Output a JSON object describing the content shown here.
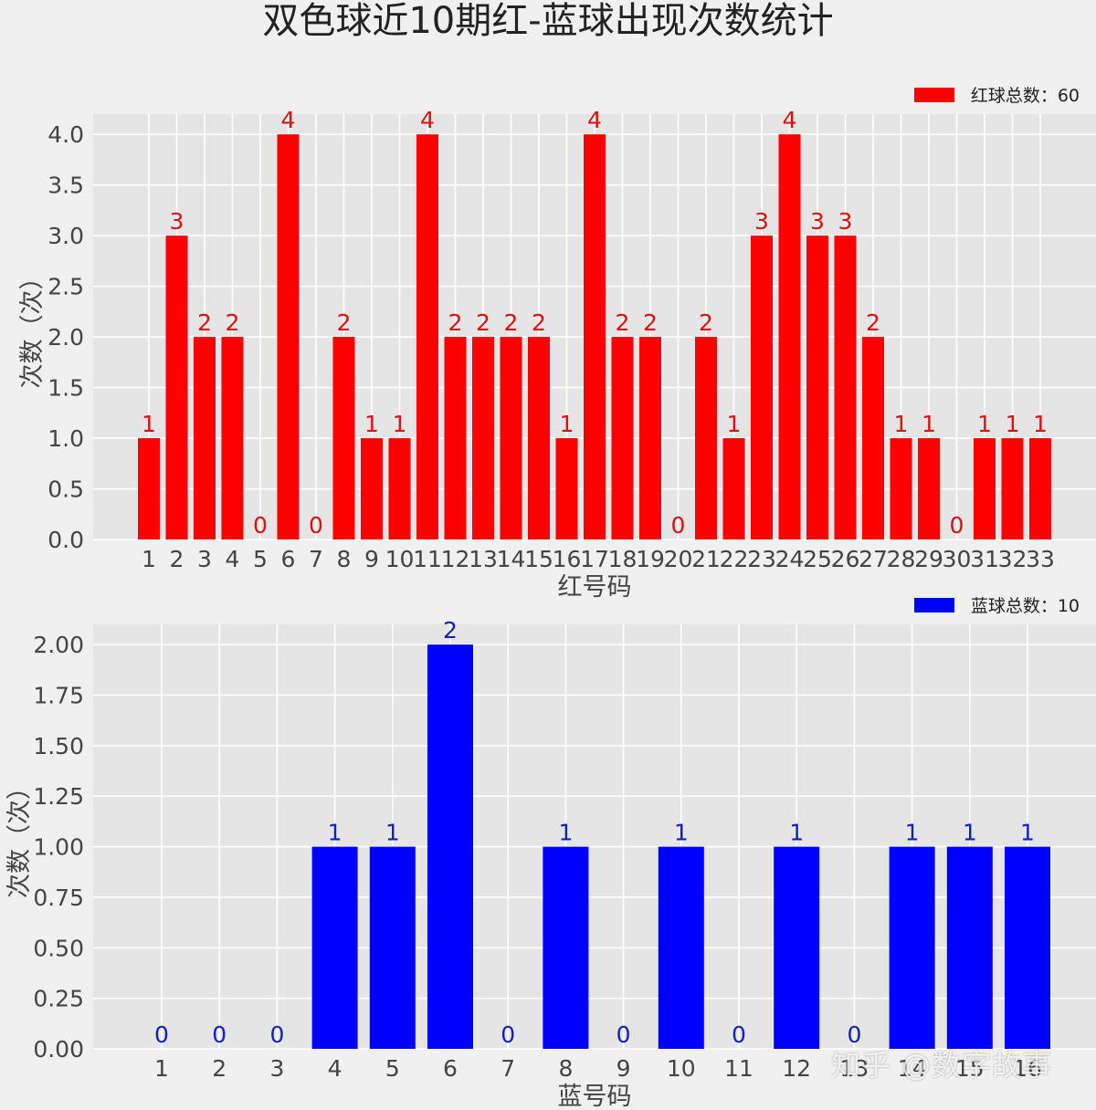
{
  "title": "双色球近10期红-蓝球出现次数统计",
  "watermark": "知乎 @数字故事",
  "chart_data": [
    {
      "type": "bar",
      "categories": [
        "1",
        "2",
        "3",
        "4",
        "5",
        "6",
        "7",
        "8",
        "9",
        "10",
        "11",
        "12",
        "13",
        "14",
        "15",
        "16",
        "17",
        "18",
        "19",
        "20",
        "21",
        "22",
        "23",
        "24",
        "25",
        "26",
        "27",
        "28",
        "29",
        "30",
        "31",
        "32",
        "33"
      ],
      "series": [
        {
          "name": "红球总数：60",
          "values": [
            1,
            3,
            2,
            2,
            0,
            4,
            0,
            2,
            1,
            1,
            4,
            2,
            2,
            2,
            2,
            1,
            4,
            2,
            2,
            0,
            2,
            1,
            3,
            4,
            3,
            3,
            2,
            1,
            1,
            0,
            1,
            1,
            1
          ]
        }
      ],
      "xlabel": "红号码",
      "ylabel": "次数（次）",
      "ylim": [
        0,
        4.2
      ],
      "yticks": [
        "0.0",
        "0.5",
        "1.0",
        "1.5",
        "2.0",
        "2.5",
        "3.0",
        "3.5",
        "4.0"
      ],
      "grid": true,
      "legend_position": "top-right",
      "color": "#ff0000",
      "label_color": "#dd1111"
    },
    {
      "type": "bar",
      "categories": [
        "1",
        "2",
        "3",
        "4",
        "5",
        "6",
        "7",
        "8",
        "9",
        "10",
        "11",
        "12",
        "13",
        "14",
        "15",
        "16"
      ],
      "series": [
        {
          "name": "蓝球总数：10",
          "values": [
            0,
            0,
            0,
            1,
            1,
            2,
            0,
            1,
            0,
            1,
            0,
            1,
            0,
            1,
            1,
            1
          ]
        }
      ],
      "xlabel": "蓝号码",
      "ylabel": "次数（次）",
      "ylim": [
        0,
        2.1
      ],
      "yticks": [
        "0.00",
        "0.25",
        "0.50",
        "0.75",
        "1.00",
        "1.25",
        "1.50",
        "1.75",
        "2.00"
      ],
      "grid": true,
      "legend_position": "top-right",
      "color": "#0000ff",
      "label_color": "#1122bb"
    }
  ]
}
